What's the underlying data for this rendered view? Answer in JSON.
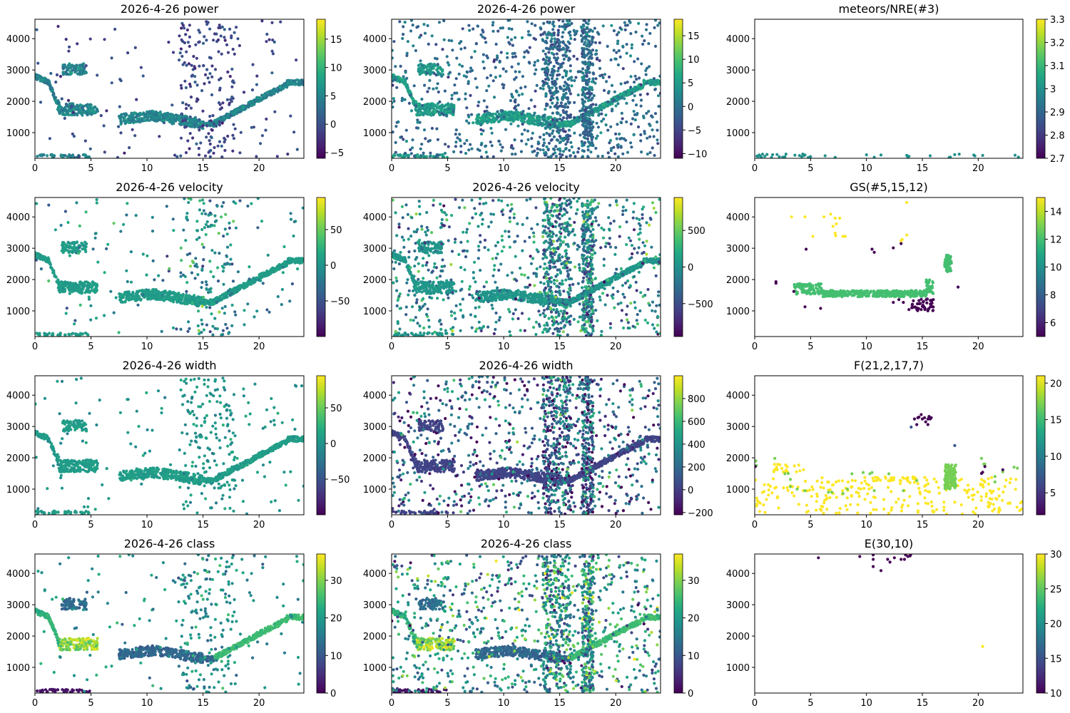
{
  "chart_data": [
    {
      "type": "scatter",
      "title": "2026-4-26 power",
      "xlabel": "",
      "ylabel": "",
      "xlim": [
        0,
        24
      ],
      "ylim": [
        180,
        4620
      ],
      "xticks": [
        0,
        5,
        10,
        15,
        20
      ],
      "yticks": [
        1000,
        2000,
        3000,
        4000
      ],
      "colorbar": {
        "range": [
          -6,
          18.5
        ],
        "ticks": [
          -5,
          0,
          5,
          10,
          15
        ],
        "colormap": "viridis"
      },
      "density": "dense-echo",
      "description": "Main echo trace descending from ~2800 km at 0h to ~1700 km by 2-5h, flat ~1300-1600 km from 8-15h, rising to ~2700 km by 23h; scattered points across range; values mostly 0-10"
    },
    {
      "type": "scatter",
      "title": "2026-4-26 power",
      "xlabel": "",
      "ylabel": "",
      "xlim": [
        0,
        24
      ],
      "ylim": [
        180,
        4620
      ],
      "xticks": [
        0,
        5,
        10,
        15,
        20
      ],
      "yticks": [
        1000,
        2000,
        3000,
        4000
      ],
      "colorbar": {
        "range": [
          -11,
          18.5
        ],
        "ticks": [
          -10,
          -5,
          0,
          5,
          10,
          15
        ],
        "colormap": "viridis"
      },
      "density": "very-dense",
      "description": "Same trace as left with many additional scattered noise points, dense vertical columns near 14-16h and 17-18h"
    },
    {
      "type": "scatter",
      "title": "meteors/NRE(#3)",
      "xlabel": "",
      "ylabel": "",
      "xlim": [
        0,
        24
      ],
      "ylim": [
        180,
        4620
      ],
      "xticks": [
        0,
        5,
        10,
        15,
        20
      ],
      "yticks": [
        1000,
        2000,
        3000,
        4000
      ],
      "colorbar": {
        "range": [
          2.7,
          3.3
        ],
        "ticks": [
          2.7,
          2.8,
          2.9,
          3.0,
          3.1,
          3.2,
          3.3
        ],
        "colormap": "viridis"
      },
      "density": "sparse-bottom",
      "description": "Few points all near ~200-300 km range, value 3"
    },
    {
      "type": "scatter",
      "title": "2026-4-26 velocity",
      "xlabel": "",
      "ylabel": "",
      "xlim": [
        0,
        24
      ],
      "ylim": [
        180,
        4620
      ],
      "xticks": [
        0,
        5,
        10,
        15,
        20
      ],
      "yticks": [
        1000,
        2000,
        3000,
        4000
      ],
      "colorbar": {
        "range": [
          -100,
          95
        ],
        "ticks": [
          -50,
          0,
          50
        ],
        "colormap": "viridis"
      },
      "density": "dense-echo",
      "description": "Same trace as power, velocity mostly near 0 (teal), few outliers"
    },
    {
      "type": "scatter",
      "title": "2026-4-26 velocity",
      "xlabel": "",
      "ylabel": "",
      "xlim": [
        0,
        24
      ],
      "ylim": [
        180,
        4620
      ],
      "xticks": [
        0,
        5,
        10,
        15,
        20
      ],
      "yticks": [
        1000,
        2000,
        3000,
        4000
      ],
      "colorbar": {
        "range": [
          -950,
          950
        ],
        "ticks": [
          -500,
          0,
          500
        ],
        "colormap": "viridis"
      },
      "density": "very-dense",
      "description": "Trace near 0 velocity with scattered noise, some negative outliers"
    },
    {
      "type": "scatter",
      "title": "GS(#5,15,12)",
      "xlabel": "",
      "ylabel": "",
      "xlim": [
        0,
        24
      ],
      "ylim": [
        180,
        4620
      ],
      "xticks": [
        0,
        5,
        10,
        15,
        20
      ],
      "yticks": [
        1000,
        2000,
        3000,
        4000
      ],
      "colorbar": {
        "range": [
          5,
          15
        ],
        "ticks": [
          6,
          8,
          10,
          12,
          14
        ],
        "colormap": "viridis"
      },
      "density": "gs",
      "description": "Class 12 band ~1500-1900 km from 3.5-16h plus cluster ~2200-2800 km at 17-17.5h; class 15 points ~3300-4100 km at 3-8h and 13-14h; class 5 points ~1000-1300 km at 14-16h"
    },
    {
      "type": "scatter",
      "title": "2026-4-26 width",
      "xlabel": "",
      "ylabel": "",
      "xlim": [
        0,
        24
      ],
      "ylim": [
        180,
        4620
      ],
      "xticks": [
        0,
        5,
        10,
        15,
        20
      ],
      "yticks": [
        1000,
        2000,
        3000,
        4000
      ],
      "colorbar": {
        "range": [
          -100,
          95
        ],
        "ticks": [
          -50,
          0,
          50
        ],
        "colormap": "viridis"
      },
      "density": "dense-echo",
      "description": "Same trace as power, width mostly 0-30"
    },
    {
      "type": "scatter",
      "title": "2026-4-26 width",
      "xlabel": "",
      "ylabel": "",
      "xlim": [
        0,
        24
      ],
      "ylim": [
        180,
        4620
      ],
      "xticks": [
        0,
        5,
        10,
        15,
        20
      ],
      "yticks": [
        1000,
        2000,
        3000,
        4000
      ],
      "colorbar": {
        "range": [
          -220,
          1000
        ],
        "ticks": [
          -200,
          0,
          200,
          400,
          600,
          800
        ],
        "colormap": "viridis"
      },
      "density": "very-dense",
      "description": "Trace at low width (~0, dark blue), scattered points with high widths"
    },
    {
      "type": "scatter",
      "title": "F(21,2,17,7)",
      "xlabel": "",
      "ylabel": "",
      "xlim": [
        0,
        24
      ],
      "ylim": [
        180,
        4620
      ],
      "xticks": [
        0,
        5,
        10,
        15,
        20
      ],
      "yticks": [
        1000,
        2000,
        3000,
        4000
      ],
      "colorbar": {
        "range": [
          2,
          21
        ],
        "ticks": [
          5,
          10,
          15,
          20
        ],
        "colormap": "viridis"
      },
      "density": "f",
      "description": "Class 21 (yellow) points at low ranges 200-1800 km scattered; class 17 (green) clusters ~1000-1800 km at 17-18h and 2-4h; class 2 cluster ~3000-3400 km at 14-16h; class 7 isolated points"
    },
    {
      "type": "scatter",
      "title": "2026-4-26 class",
      "xlabel": "",
      "ylabel": "",
      "xlim": [
        0,
        24
      ],
      "ylim": [
        180,
        4620
      ],
      "xticks": [
        0,
        5,
        10,
        15,
        20
      ],
      "yticks": [
        1000,
        2000,
        3000,
        4000
      ],
      "colorbar": {
        "range": [
          0,
          37
        ],
        "ticks": [
          0,
          10,
          20,
          30
        ],
        "colormap": "viridis"
      },
      "density": "dense-echo",
      "description": "Trace with class values: early part ~25-37, middle ~12, late rise ~25"
    },
    {
      "type": "scatter",
      "title": "2026-4-26 class",
      "xlabel": "",
      "ylabel": "",
      "xlim": [
        0,
        24
      ],
      "ylim": [
        180,
        4620
      ],
      "xticks": [
        0,
        5,
        10,
        15,
        20
      ],
      "yticks": [
        1000,
        2000,
        3000,
        4000
      ],
      "colorbar": {
        "range": [
          0,
          37
        ],
        "ticks": [
          0,
          10,
          20,
          30
        ],
        "colormap": "viridis"
      },
      "density": "very-dense",
      "description": "Trace with class values plus noise points of mixed classes"
    },
    {
      "type": "scatter",
      "title": "E(30,10)",
      "xlabel": "",
      "ylabel": "",
      "xlim": [
        0,
        24
      ],
      "ylim": [
        180,
        4620
      ],
      "xticks": [
        0,
        5,
        10,
        15,
        20
      ],
      "yticks": [
        1000,
        2000,
        3000,
        4000
      ],
      "colorbar": {
        "range": [
          10,
          30
        ],
        "ticks": [
          10,
          15,
          20,
          25,
          30
        ],
        "colormap": "viridis"
      },
      "density": "e",
      "points": [
        {
          "x": 5.7,
          "y": 4500,
          "c": 10
        },
        {
          "x": 9.4,
          "y": 4540,
          "c": 10
        },
        {
          "x": 10.6,
          "y": 4590,
          "c": 10
        },
        {
          "x": 10.6,
          "y": 4450,
          "c": 10
        },
        {
          "x": 10.6,
          "y": 4220,
          "c": 10
        },
        {
          "x": 11.3,
          "y": 4090,
          "c": 10
        },
        {
          "x": 11.9,
          "y": 4450,
          "c": 10
        },
        {
          "x": 12.1,
          "y": 4360,
          "c": 10
        },
        {
          "x": 12.5,
          "y": 4500,
          "c": 10
        },
        {
          "x": 13.1,
          "y": 4450,
          "c": 10
        },
        {
          "x": 13.4,
          "y": 4450,
          "c": 10
        },
        {
          "x": 13.5,
          "y": 4590,
          "c": 10
        },
        {
          "x": 13.7,
          "y": 4540,
          "c": 10
        },
        {
          "x": 13.9,
          "y": 4560,
          "c": 10
        },
        {
          "x": 13.95,
          "y": 4590,
          "c": 10
        },
        {
          "x": 20.4,
          "y": 1670,
          "c": 30
        }
      ],
      "description": "Class 10 points near 4100-4600 km at 5-14h; single class 30 point at 20.4h ~1670 km"
    }
  ]
}
